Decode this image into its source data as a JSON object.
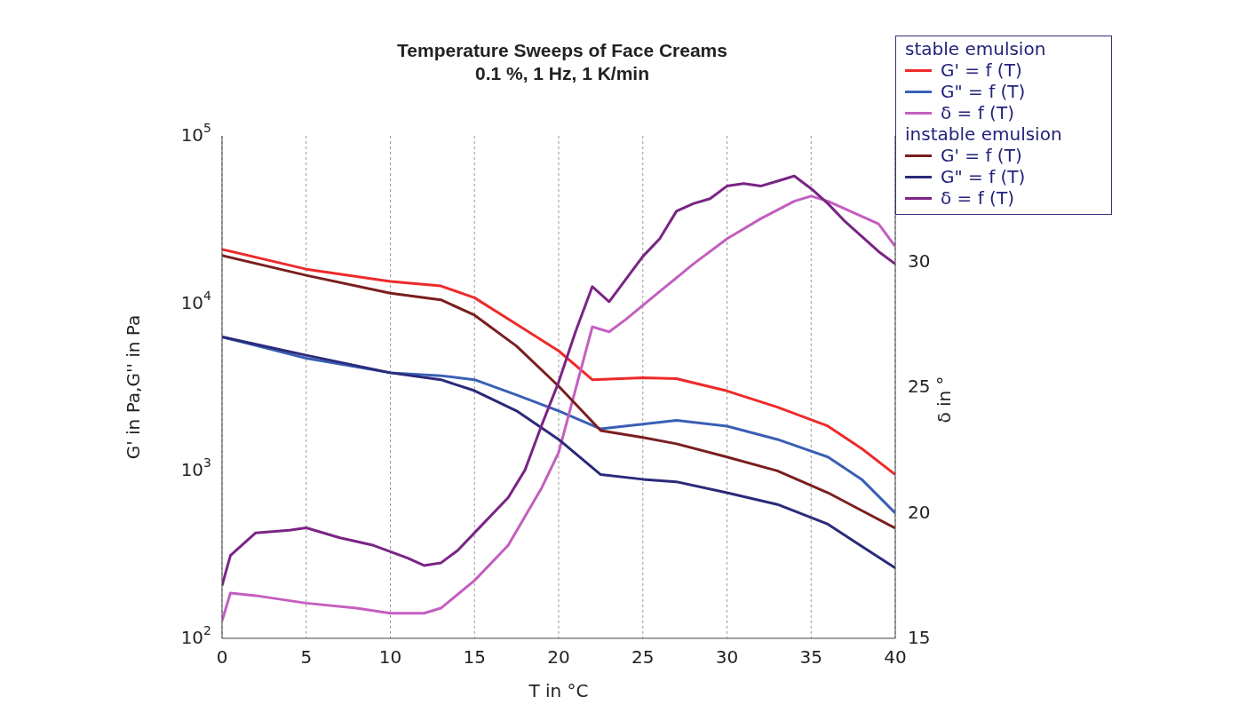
{
  "chart_data": {
    "type": "line",
    "title": "Temperature Sweeps of Face Creams",
    "subtitle": "0.1 %, 1 Hz, 1 K/min",
    "xlabel": "T in °C",
    "ylabel": "G' in Pa,G'' in Pa",
    "y2label": "δ in °",
    "annotations": [
      "stable emulsion",
      "instable emulsion"
    ],
    "xlim": [
      0,
      40
    ],
    "xticks": [
      0,
      5,
      10,
      15,
      20,
      25,
      30,
      35,
      40
    ],
    "ylim": [
      100,
      100000
    ],
    "yticks": [
      {
        "value": 100,
        "label": "10$^{2}$"
      },
      {
        "value": 1000,
        "label": "10$^{3}$"
      },
      {
        "value": 10000,
        "label": "10$^{4}$"
      },
      {
        "value": 100000,
        "label": "10$^{5}$"
      }
    ],
    "y2lim": [
      15,
      35
    ],
    "y2ticks": [
      15,
      20,
      25,
      30
    ],
    "log": "y",
    "grid": true,
    "legend": "top right",
    "marker": "none",
    "line_style": "solid",
    "series": [
      {
        "name": "G' = f (T)",
        "color": "#ee2a2a",
        "x": [
          0,
          5,
          10,
          13,
          15,
          17.5,
          20,
          22,
          25,
          27,
          30,
          33,
          36,
          38,
          40
        ],
        "values": [
          21000,
          16000,
          13500,
          12700,
          10800,
          7500,
          5200,
          3500,
          3600,
          3550,
          3000,
          2400,
          1850,
          1360,
          950
        ]
      },
      {
        "name": "G\" = f (T)",
        "color": "#3a5fb5",
        "x": [
          0,
          5,
          10,
          13,
          15,
          17.5,
          20,
          22.5,
          25,
          27,
          30,
          33,
          36,
          38,
          40
        ],
        "values": [
          6300,
          4700,
          3850,
          3700,
          3500,
          2840,
          2280,
          1780,
          1900,
          2000,
          1850,
          1540,
          1210,
          890,
          560
        ]
      },
      {
        "name": "δ = f (T)",
        "color": "#c45ec0",
        "axis": "y2",
        "x": [
          0,
          0.5,
          2,
          5,
          8,
          10,
          12,
          13,
          15,
          17,
          19,
          20,
          21,
          22,
          23,
          24,
          26,
          28,
          30,
          32,
          34,
          35,
          36,
          38,
          39,
          40
        ],
        "values": [
          15.7,
          16.8,
          16.7,
          16.4,
          16.2,
          16.0,
          16.0,
          16.2,
          17.3,
          18.7,
          21.0,
          22.4,
          24.9,
          27.4,
          27.2,
          27.7,
          28.8,
          29.9,
          30.9,
          31.7,
          32.4,
          32.6,
          32.4,
          31.8,
          31.5,
          30.6
        ]
      },
      {
        "name": "G' = f (T)",
        "color": "#7a1e1e",
        "x": [
          0,
          5,
          10,
          13,
          15,
          17.5,
          20,
          22.5,
          25,
          27,
          30,
          33,
          36,
          38,
          40
        ],
        "values": [
          19300,
          14700,
          11500,
          10500,
          8500,
          5550,
          3200,
          1740,
          1580,
          1450,
          1210,
          1000,
          740,
          580,
          455
        ]
      },
      {
        "name": "G\" = f (T)",
        "color": "#2a2a7a",
        "x": [
          0,
          5,
          10,
          13,
          15,
          17.5,
          20,
          22.5,
          25,
          27,
          30,
          33,
          36,
          38,
          40
        ],
        "values": [
          6300,
          4900,
          3850,
          3500,
          3010,
          2280,
          1540,
          950,
          890,
          860,
          740,
          630,
          480,
          355,
          263
        ]
      },
      {
        "name": "δ = f (T)",
        "color": "#7a2485",
        "axis": "y2",
        "x": [
          0,
          0.5,
          2,
          4,
          5,
          7,
          9,
          11,
          12,
          13,
          14,
          15,
          17,
          18,
          19,
          20,
          21,
          22,
          23,
          24,
          25,
          26,
          27,
          28,
          29,
          30,
          31,
          32,
          33,
          34,
          35,
          36,
          37,
          38,
          39,
          40
        ],
        "values": [
          17.1,
          18.3,
          19.2,
          19.3,
          19.4,
          19.0,
          18.7,
          18.2,
          17.9,
          18.0,
          18.5,
          19.2,
          20.6,
          21.7,
          23.5,
          25.2,
          27.2,
          29.0,
          28.4,
          29.3,
          30.2,
          30.9,
          32.0,
          32.3,
          32.5,
          33.0,
          33.1,
          33.0,
          33.2,
          33.4,
          32.9,
          32.3,
          31.6,
          31.0,
          30.4,
          29.9
        ]
      }
    ]
  }
}
